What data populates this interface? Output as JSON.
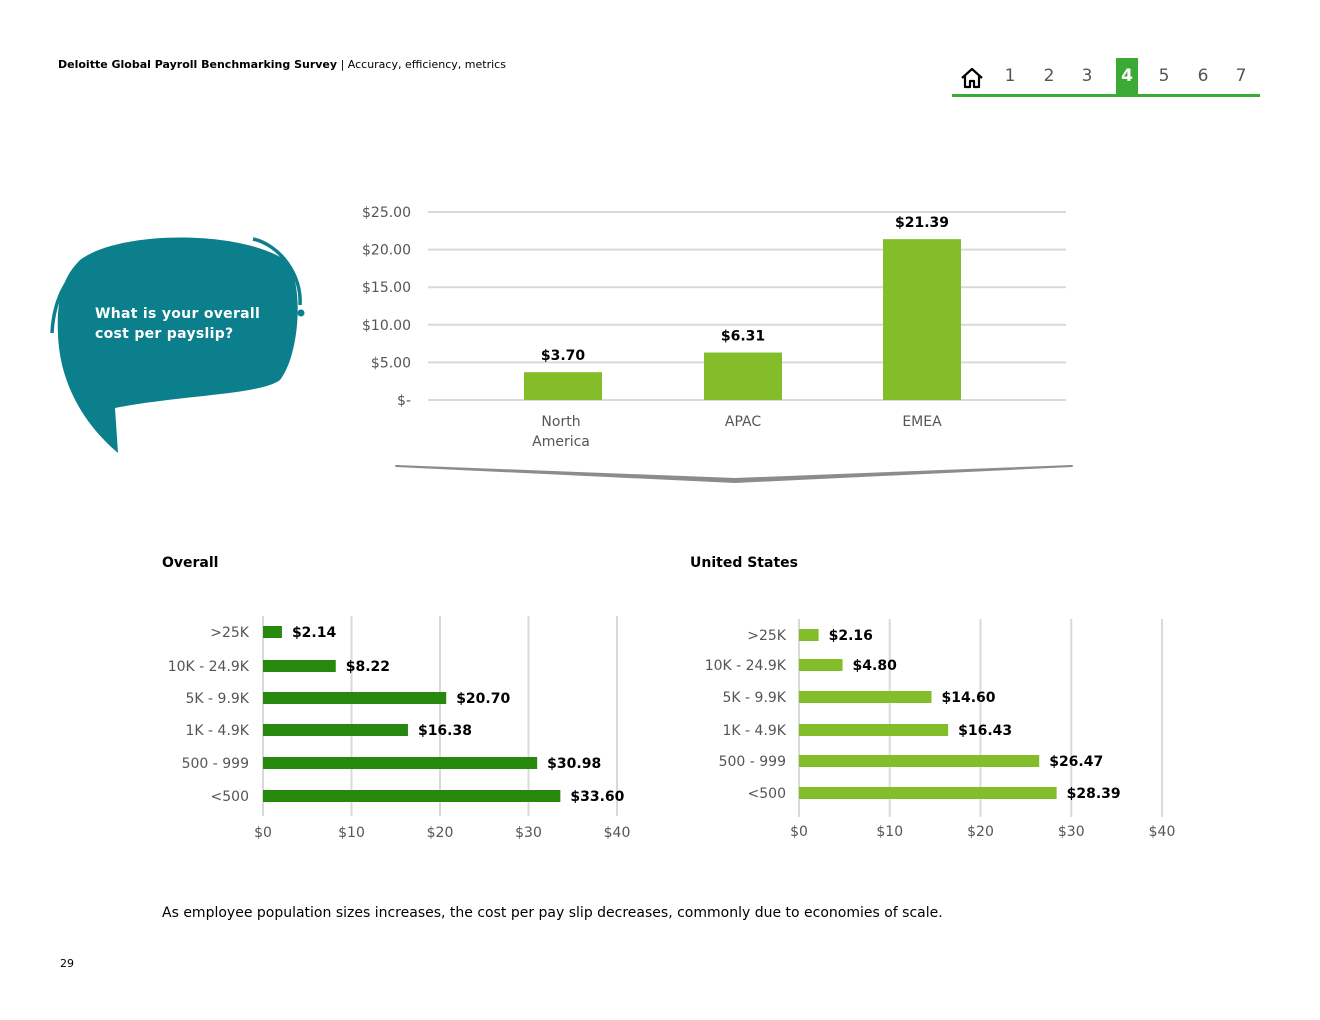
{
  "header": {
    "title": "Deloitte Global Payroll Benchmarking Survey",
    "subtitle": "| Accuracy, efficiency, metrics"
  },
  "nav": {
    "home_icon": "home-icon",
    "items": [
      "1",
      "2",
      "3",
      "4",
      "5",
      "6",
      "7"
    ],
    "active": "4",
    "accent": "#3aaa35"
  },
  "bubble": {
    "line1": "What is your overall",
    "line2": "cost per payslip?",
    "color": "#0b7f8c"
  },
  "charts": {
    "overall_title": "Overall",
    "us_title": "United States"
  },
  "chart_data": [
    {
      "type": "bar",
      "categories": [
        "North America",
        "APAC",
        "EMEA"
      ],
      "values": [
        3.7,
        6.31,
        21.39
      ],
      "value_labels": [
        "$3.70",
        "$6.31",
        "$21.39"
      ],
      "yticks": [
        "$-",
        "$5.00",
        "$10.00",
        "$15.00",
        "$20.00",
        "$25.00"
      ],
      "ylim": [
        0,
        25
      ],
      "grid": true,
      "color": "#84bd2a"
    },
    {
      "type": "bar",
      "orientation": "horizontal",
      "title": "Overall",
      "categories": [
        ">25K",
        "10K - 24.9K",
        "5K - 9.9K",
        "1K - 4.9K",
        "500 - 999",
        "<500"
      ],
      "values": [
        2.14,
        8.22,
        20.7,
        16.38,
        30.98,
        33.6
      ],
      "value_labels": [
        "$2.14",
        "$8.22",
        "$20.70",
        "$16.38",
        "$30.98",
        "$33.60"
      ],
      "xticks": [
        "$0",
        "$10",
        "$20",
        "$30",
        "$40"
      ],
      "xlim": [
        0,
        40
      ],
      "grid": true,
      "color": "#26890d"
    },
    {
      "type": "bar",
      "orientation": "horizontal",
      "title": "United States",
      "categories": [
        ">25K",
        "10K - 24.9K",
        "5K - 9.9K",
        "1K - 4.9K",
        "500 - 999",
        "<500"
      ],
      "values": [
        2.16,
        4.8,
        14.6,
        16.43,
        26.47,
        28.39
      ],
      "value_labels": [
        "$2.16",
        "$4.80",
        "$14.60",
        "$16.43",
        "$26.47",
        "$28.39"
      ],
      "xticks": [
        "$0",
        "$10",
        "$20",
        "$30",
        "$40"
      ],
      "xlim": [
        0,
        40
      ],
      "grid": true,
      "color": "#84bd2a"
    }
  ],
  "footer": {
    "note": "As employee population sizes increases, the cost per pay slip decreases, commonly due to economies of scale.",
    "page_number": "29"
  }
}
